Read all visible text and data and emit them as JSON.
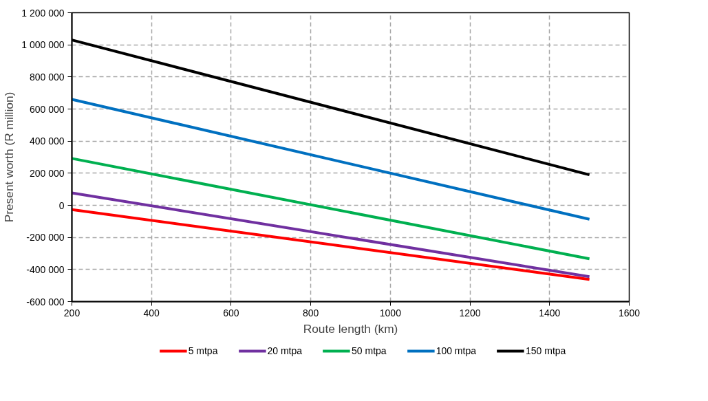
{
  "chart_data": {
    "type": "line",
    "xlabel": "Route length (km)",
    "ylabel": "Present worth (R million)",
    "x": [
      200,
      1500
    ],
    "series": [
      {
        "name": "5 mtpa",
        "color": "#ff0000",
        "values": [
          -27000,
          -462000
        ]
      },
      {
        "name": "20 mtpa",
        "color": "#7030a0",
        "values": [
          77000,
          -445000
        ]
      },
      {
        "name": "50 mtpa",
        "color": "#00b050",
        "values": [
          292000,
          -333000
        ]
      },
      {
        "name": "100 mtpa",
        "color": "#0070c0",
        "values": [
          660000,
          -87000
        ]
      },
      {
        "name": "150 mtpa",
        "color": "#000000",
        "values": [
          1030000,
          190000
        ]
      }
    ],
    "xlim": [
      200,
      1600
    ],
    "xticks": [
      200,
      400,
      600,
      800,
      1000,
      1200,
      1400,
      1600
    ],
    "ylim": [
      -600000,
      1200000
    ],
    "yticks": [
      {
        "value": -600000,
        "label": "-600 000"
      },
      {
        "value": -400000,
        "label": "-400 000"
      },
      {
        "value": -200000,
        "label": "-200 000"
      },
      0,
      {
        "value": 200000,
        "label": "200 000"
      },
      {
        "value": 400000,
        "label": "400 000"
      },
      {
        "value": 600000,
        "label": "600 000"
      },
      {
        "value": 800000,
        "label": "800 000"
      },
      {
        "value": 1000000,
        "label": "1 000 000"
      },
      {
        "value": 1200000,
        "label": "1 200 000"
      }
    ],
    "grid": true,
    "legend": "bottom",
    "marker": "none",
    "line_style": "solid"
  }
}
